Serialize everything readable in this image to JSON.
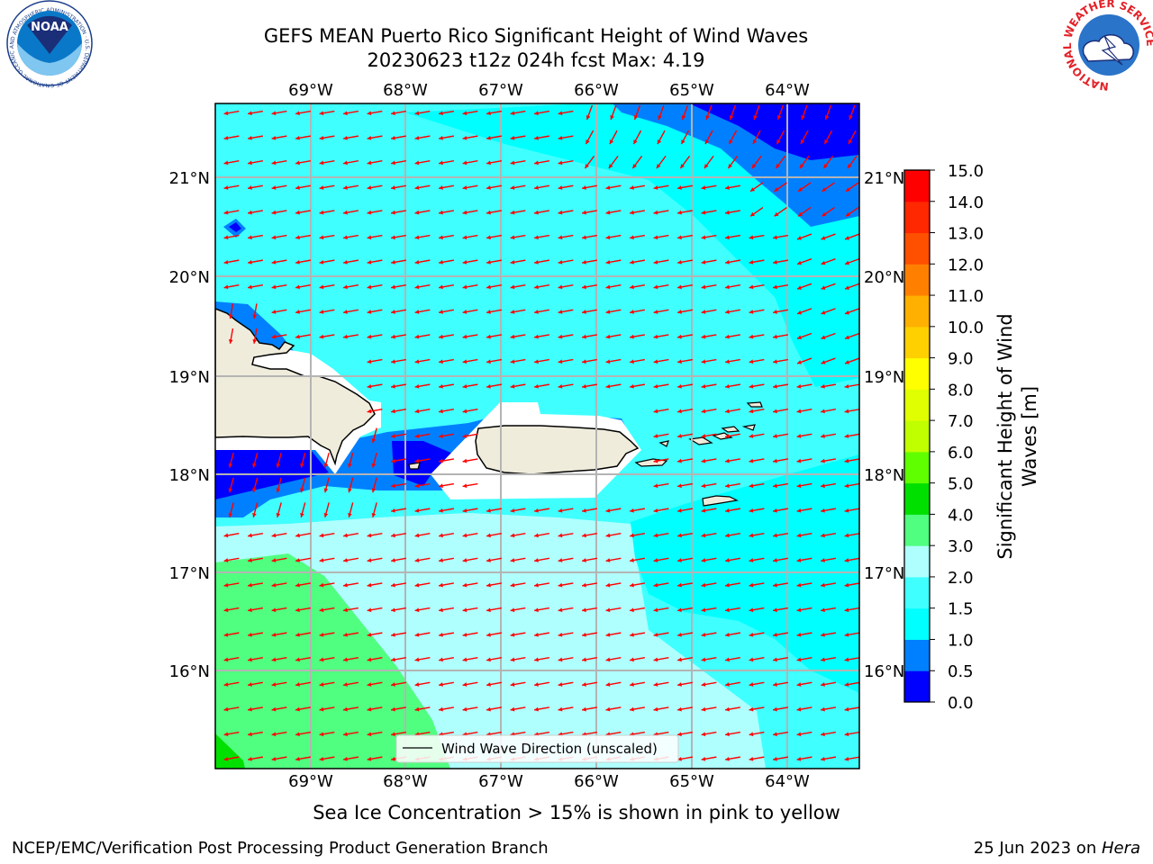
{
  "title_line1": "GEFS MEAN Puerto Rico Significant Height of Wind Waves",
  "title_line2": "20230623 t12z 024h fcst   Max: 4.19",
  "caption": "Sea Ice Concentration > 15% is shown in pink to yellow",
  "footer_left": "NCEP/EMC/Verification Post Processing Product Generation Branch",
  "footer_right_date": "25 Jun 2023 on ",
  "footer_right_machine": "Hera",
  "legend_label": "Wind Wave Direction (unscaled)",
  "colorbar": {
    "label_line1": "Significant Height of Wind",
    "label_line2": "Waves [m]",
    "ticks": [
      "0.0",
      "0.5",
      "1.0",
      "1.5",
      "2.0",
      "3.0",
      "4.0",
      "5.0",
      "6.0",
      "7.0",
      "8.0",
      "9.0",
      "10.0",
      "11.0",
      "12.0",
      "13.0",
      "14.0",
      "15.0"
    ],
    "colors": [
      "#0000ff",
      "#0080ff",
      "#00ffff",
      "#40ffff",
      "#b0ffff",
      "#50ff80",
      "#00e000",
      "#60ff00",
      "#c0ff00",
      "#e0ff00",
      "#ffff00",
      "#ffd000",
      "#ffb000",
      "#ff8000",
      "#ff5000",
      "#ff2800",
      "#ff0000"
    ]
  },
  "map": {
    "lon_labels": [
      "69°W",
      "68°W",
      "67°W",
      "66°W",
      "65°W",
      "64°W"
    ],
    "lat_labels": [
      "21°N",
      "20°N",
      "19°N",
      "18°N",
      "17°N",
      "16°N"
    ],
    "max_value": 4.19
  },
  "logos": {
    "noaa_text": "NOAA",
    "noaa_ring": "NATIONAL OCEANIC AND ATMOSPHERIC ADMINISTRATION · U.S. DEPARTMENT OF COMMERCE",
    "nws_ring": "NATIONAL WEATHER SERVICE"
  },
  "colors": {
    "land": "#efecdc",
    "arrow": "#ff0000",
    "grid": "#b4b4b4"
  }
}
